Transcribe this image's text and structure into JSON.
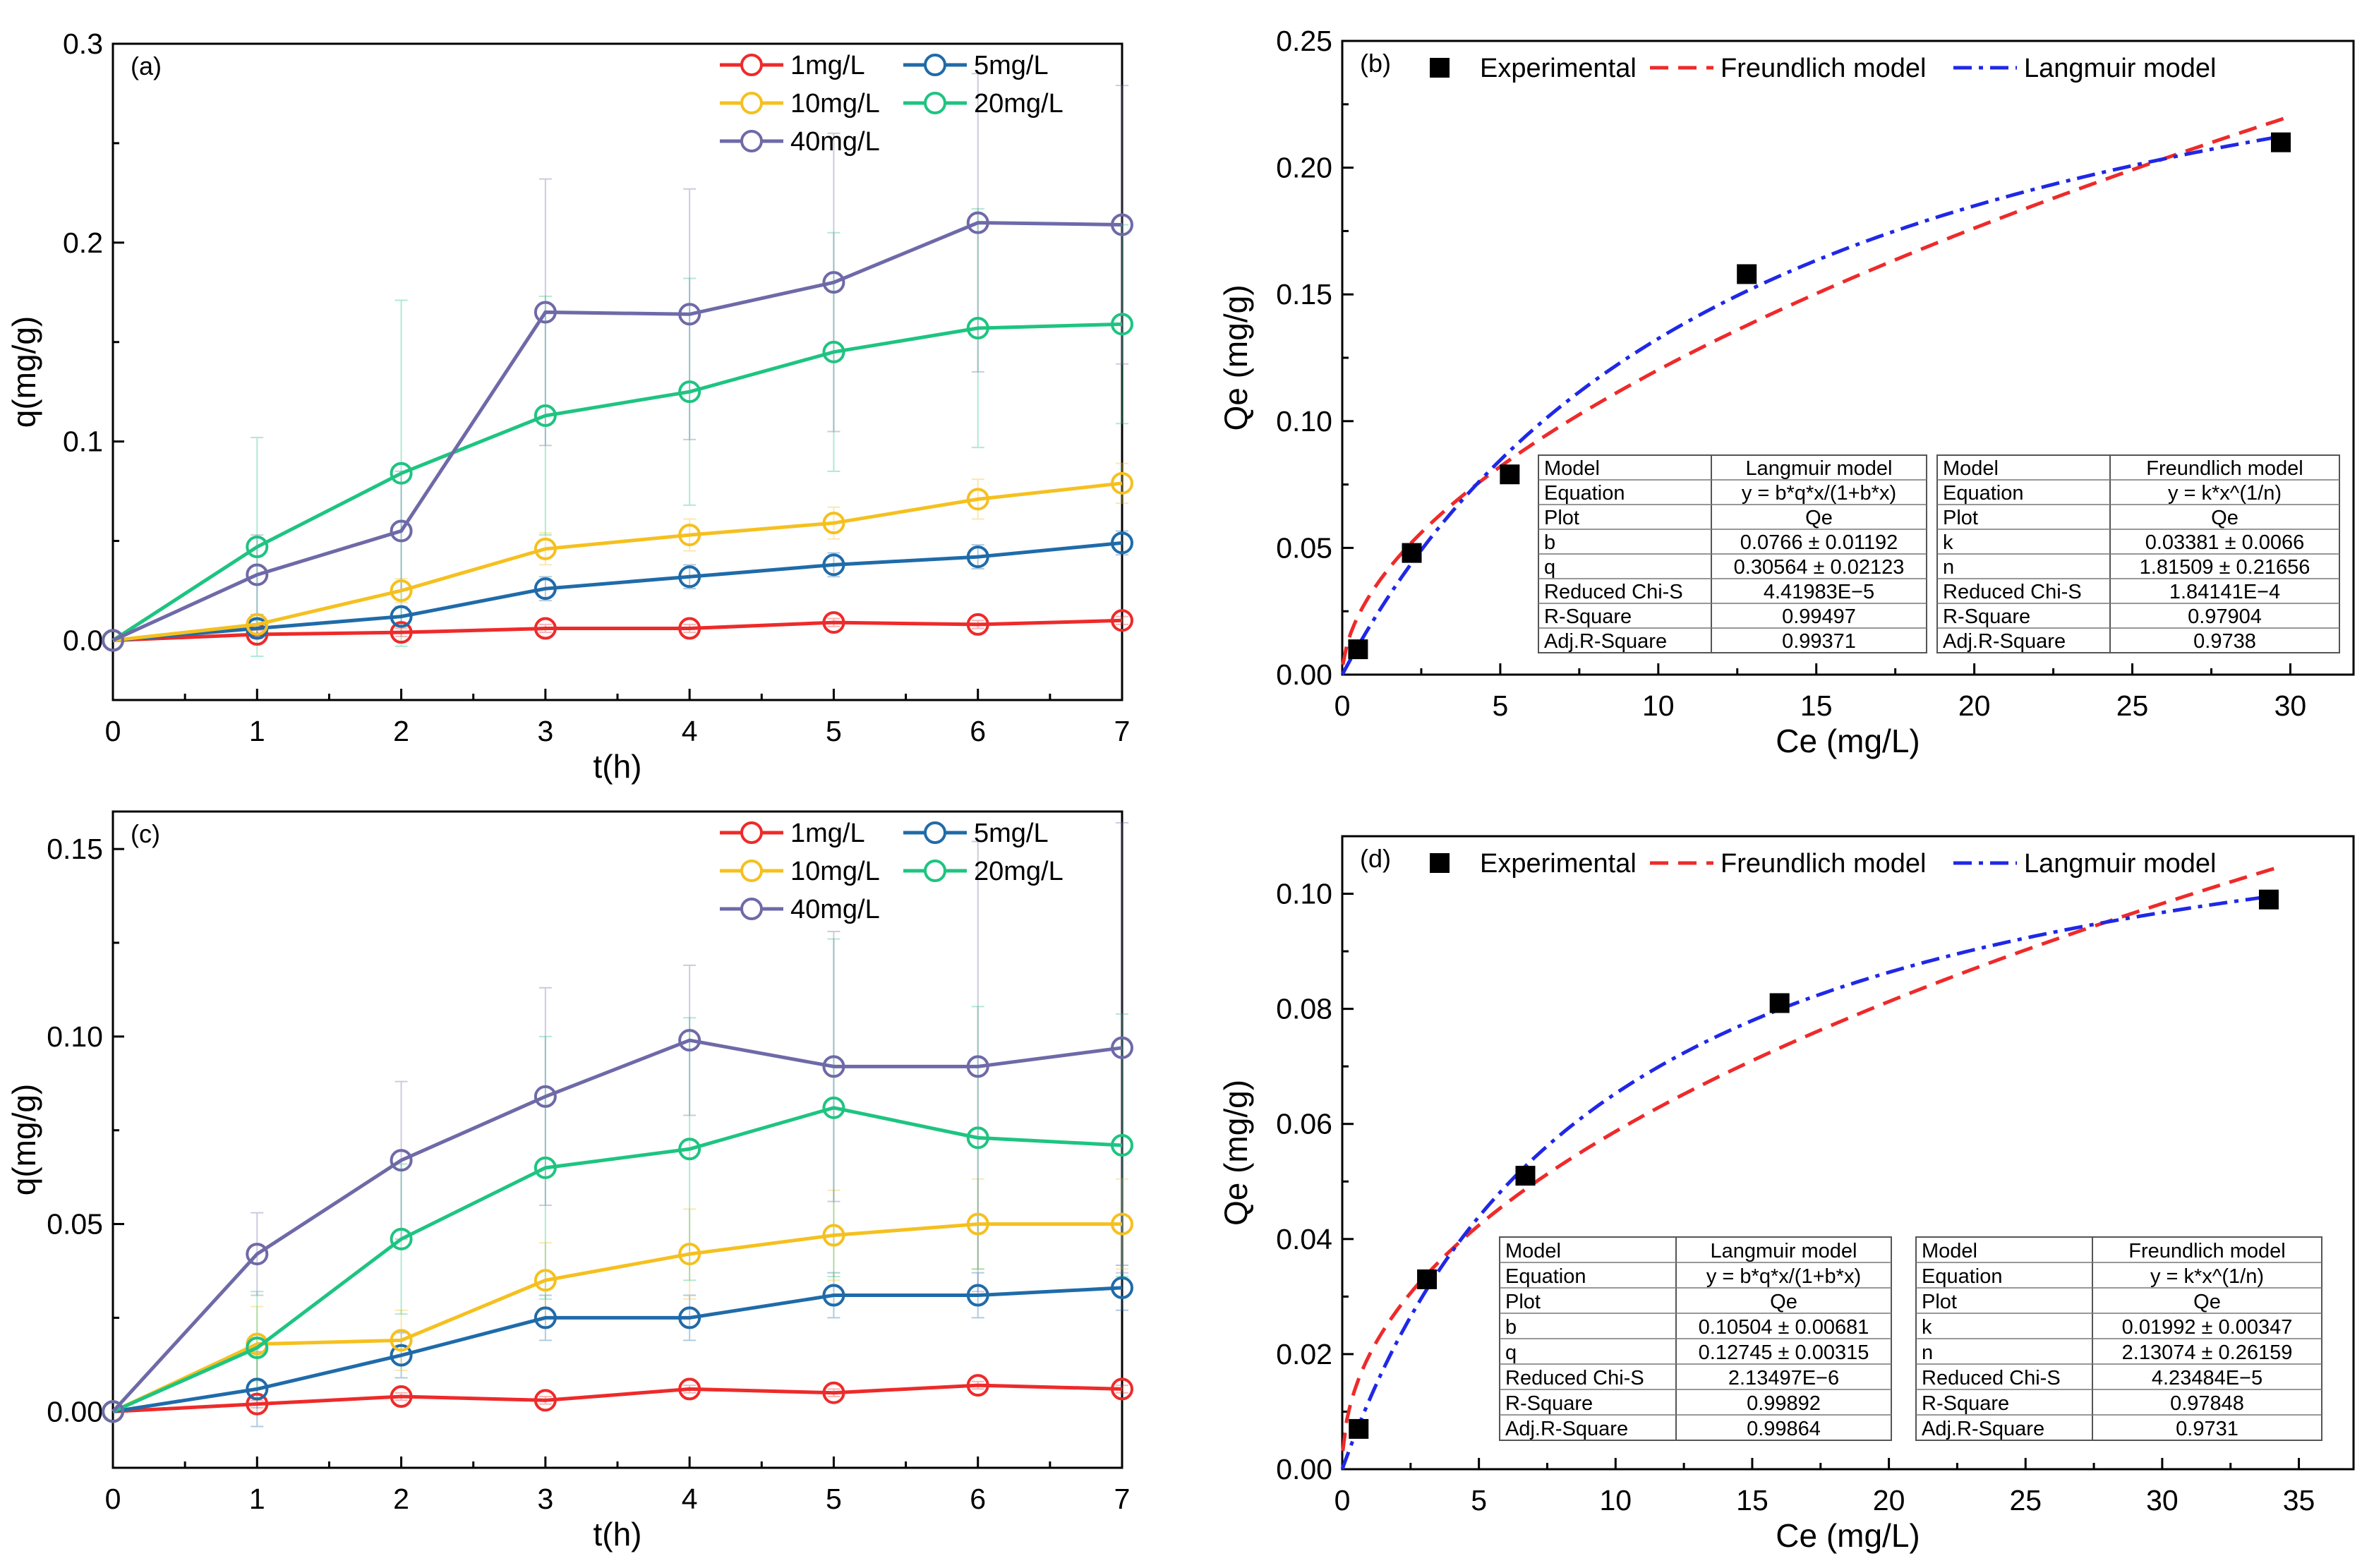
{
  "chart_data": [
    {
      "id": "a",
      "type": "line",
      "panel_label": "(a)",
      "xlabel": "t(h)",
      "ylabel": "q(mg/g)",
      "xlim": [
        0,
        7
      ],
      "ylim": [
        -0.03,
        0.3
      ],
      "xticks": [
        0,
        1,
        2,
        3,
        4,
        5,
        6,
        7
      ],
      "yticks": [
        0.0,
        0.1,
        0.2,
        0.3
      ],
      "ytick_labels": [
        "0.0",
        "0.1",
        "0.2",
        "0.3"
      ],
      "legend_position": "top-right",
      "x": [
        0,
        1,
        2,
        3,
        4,
        5,
        6,
        7
      ],
      "series": [
        {
          "name": "1mg/L",
          "color": "#ee2a2a",
          "values": [
            0,
            0.003,
            0.004,
            0.006,
            0.006,
            0.009,
            0.008,
            0.01
          ],
          "err": [
            0,
            0.002,
            0.002,
            0.002,
            0.002,
            0.002,
            0.002,
            0.002
          ]
        },
        {
          "name": "5mg/L",
          "color": "#1f6ba9",
          "values": [
            0,
            0.006,
            0.012,
            0.026,
            0.032,
            0.038,
            0.042,
            0.049
          ],
          "err": [
            0,
            0.004,
            0.005,
            0.006,
            0.006,
            0.006,
            0.006,
            0.006
          ]
        },
        {
          "name": "10mg/L",
          "color": "#f5c01f",
          "values": [
            0,
            0.008,
            0.025,
            0.046,
            0.053,
            0.059,
            0.071,
            0.079
          ],
          "err": [
            0,
            0.005,
            0.006,
            0.008,
            0.008,
            0.008,
            0.01,
            0.01
          ]
        },
        {
          "name": "20mg/L",
          "color": "#1ec481",
          "values": [
            0,
            0.047,
            0.084,
            0.113,
            0.125,
            0.145,
            0.157,
            0.159
          ],
          "err": [
            0,
            0.055,
            0.087,
            0.06,
            0.057,
            0.06,
            0.06,
            0.05
          ]
        },
        {
          "name": "40mg/L",
          "color": "#6e6aa8",
          "values": [
            0,
            0.033,
            0.055,
            0.165,
            0.164,
            0.18,
            0.21,
            0.209
          ],
          "err": [
            0,
            0.02,
            0.03,
            0.067,
            0.063,
            0.075,
            0.075,
            0.07
          ]
        }
      ]
    },
    {
      "id": "b",
      "type": "scatter",
      "panel_label": "(b)",
      "xlabel": "Ce (mg/L)",
      "ylabel": "Qe (mg/g)",
      "xlim": [
        0,
        32
      ],
      "ylim": [
        0,
        0.25
      ],
      "xticks": [
        0,
        5,
        10,
        15,
        20,
        25,
        30
      ],
      "yticks": [
        0.0,
        0.05,
        0.1,
        0.15,
        0.2,
        0.25
      ],
      "ytick_labels": [
        "0.00",
        "0.05",
        "0.10",
        "0.15",
        "0.20",
        "0.25"
      ],
      "legend_position": "top",
      "experimental": {
        "name": "Experimental",
        "x": [
          0.5,
          2.2,
          5.3,
          12.8,
          29.7
        ],
        "y": [
          0.01,
          0.048,
          0.079,
          0.158,
          0.21
        ]
      },
      "freundlich": {
        "name": "Freundlich model",
        "k": 0.03381,
        "n": 1.81509,
        "color": "#ee2a2a"
      },
      "langmuir": {
        "name": "Langmuir model",
        "b": 0.0766,
        "q": 0.30564,
        "color": "#1f28e6"
      },
      "tables": [
        {
          "rows": [
            [
              "Model",
              "Langmuir model"
            ],
            [
              "Equation",
              "y = b*q*x/(1+b*x)"
            ],
            [
              "Plot",
              "Qe"
            ],
            [
              "b",
              "0.0766 ± 0.01192"
            ],
            [
              "q",
              "0.30564 ± 0.02123"
            ],
            [
              "Reduced Chi-S",
              "4.41983E−5"
            ],
            [
              "R-Square",
              "0.99497"
            ],
            [
              "Adj.R-Square",
              "0.99371"
            ]
          ]
        },
        {
          "rows": [
            [
              "Model",
              "Freundlich model"
            ],
            [
              "Equation",
              "y = k*x^(1/n)"
            ],
            [
              "Plot",
              "Qe"
            ],
            [
              "k",
              "0.03381 ± 0.0066"
            ],
            [
              "n",
              "1.81509 ± 0.21656"
            ],
            [
              "Reduced Chi-S",
              "1.84141E−4"
            ],
            [
              "R-Square",
              "0.97904"
            ],
            [
              "Adj.R-Square",
              "0.9738"
            ]
          ]
        }
      ]
    },
    {
      "id": "c",
      "type": "line",
      "panel_label": "(c)",
      "xlabel": "t(h)",
      "ylabel": "q(mg/g)",
      "xlim": [
        0,
        7
      ],
      "ylim": [
        -0.015,
        0.16
      ],
      "xticks": [
        0,
        1,
        2,
        3,
        4,
        5,
        6,
        7
      ],
      "yticks": [
        0.0,
        0.05,
        0.1,
        0.15
      ],
      "ytick_labels": [
        "0.00",
        "0.05",
        "0.10",
        "0.15"
      ],
      "legend_position": "top-right",
      "x": [
        0,
        1,
        2,
        3,
        4,
        5,
        6,
        7
      ],
      "series": [
        {
          "name": "1mg/L",
          "color": "#ee2a2a",
          "values": [
            0,
            0.002,
            0.004,
            0.003,
            0.006,
            0.005,
            0.007,
            0.006
          ],
          "err": [
            0,
            0.001,
            0.001,
            0.001,
            0.001,
            0.001,
            0.001,
            0.001
          ]
        },
        {
          "name": "5mg/L",
          "color": "#1f6ba9",
          "values": [
            0,
            0.006,
            0.015,
            0.025,
            0.025,
            0.031,
            0.031,
            0.033
          ],
          "err": [
            0,
            0.01,
            0.006,
            0.006,
            0.006,
            0.006,
            0.006,
            0.006
          ]
        },
        {
          "name": "10mg/L",
          "color": "#f5c01f",
          "values": [
            0,
            0.018,
            0.019,
            0.035,
            0.042,
            0.047,
            0.05,
            0.05
          ],
          "err": [
            0,
            0.01,
            0.008,
            0.01,
            0.012,
            0.012,
            0.012,
            0.012
          ]
        },
        {
          "name": "20mg/L",
          "color": "#1ec481",
          "values": [
            0,
            0.017,
            0.046,
            0.065,
            0.07,
            0.081,
            0.073,
            0.071
          ],
          "err": [
            0,
            0.015,
            0.02,
            0.035,
            0.035,
            0.045,
            0.035,
            0.035
          ]
        },
        {
          "name": "40mg/L",
          "color": "#6e6aa8",
          "values": [
            0,
            0.042,
            0.067,
            0.084,
            0.099,
            0.092,
            0.092,
            0.097
          ],
          "err": [
            0,
            0.011,
            0.021,
            0.029,
            0.02,
            0.036,
            0.06,
            0.06
          ]
        }
      ]
    },
    {
      "id": "d",
      "type": "scatter",
      "panel_label": "(d)",
      "xlabel": "Ce (mg/L)",
      "ylabel": "Qe (mg/g)",
      "xlim": [
        0,
        37
      ],
      "ylim": [
        0,
        0.11
      ],
      "xticks": [
        0,
        5,
        10,
        15,
        20,
        25,
        30,
        35
      ],
      "yticks": [
        0.0,
        0.02,
        0.04,
        0.06,
        0.08,
        0.1
      ],
      "ytick_labels": [
        "0.00",
        "0.02",
        "0.04",
        "0.06",
        "0.08",
        "0.10"
      ],
      "legend_position": "top",
      "experimental": {
        "name": "Experimental",
        "x": [
          0.6,
          3.1,
          6.7,
          16.0,
          33.9
        ],
        "y": [
          0.007,
          0.033,
          0.051,
          0.081,
          0.099
        ]
      },
      "freundlich": {
        "name": "Freundlich model",
        "k": 0.01992,
        "n": 2.13074,
        "color": "#ee2a2a"
      },
      "langmuir": {
        "name": "Langmuir model",
        "b": 0.10504,
        "q": 0.12745,
        "color": "#1f28e6"
      },
      "tables": [
        {
          "rows": [
            [
              "Model",
              "Langmuir model"
            ],
            [
              "Equation",
              "y = b*q*x/(1+b*x)"
            ],
            [
              "Plot",
              "Qe"
            ],
            [
              "b",
              "0.10504 ± 0.00681"
            ],
            [
              "q",
              "0.12745 ± 0.00315"
            ],
            [
              "Reduced Chi-S",
              "2.13497E−6"
            ],
            [
              "R-Square",
              "0.99892"
            ],
            [
              "Adj.R-Square",
              "0.99864"
            ]
          ]
        },
        {
          "rows": [
            [
              "Model",
              "Freundlich model"
            ],
            [
              "Equation",
              "y = k*x^(1/n)"
            ],
            [
              "Plot",
              "Qe"
            ],
            [
              "k",
              "0.01992 ± 0.00347"
            ],
            [
              "n",
              "2.13074 ± 0.26159"
            ],
            [
              "Reduced Chi-S",
              "4.23484E−5"
            ],
            [
              "R-Square",
              "0.97848"
            ],
            [
              "Adj.R-Square",
              "0.9731"
            ]
          ]
        }
      ]
    }
  ]
}
